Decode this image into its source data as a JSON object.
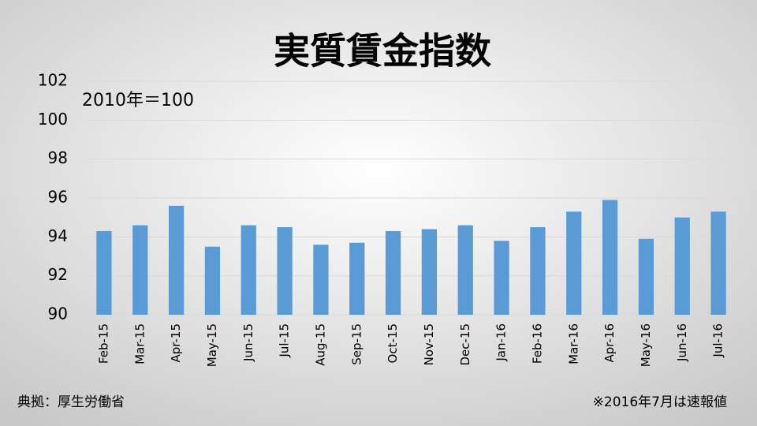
{
  "chart_data": {
    "type": "bar",
    "title": "実質賃金指数",
    "annotation": "2010年＝100",
    "source": "典拠：厚生労働省",
    "note": "※2016年7月は速報値",
    "categories": [
      "Feb-15",
      "Mar-15",
      "Apr-15",
      "May-15",
      "Jun-15",
      "Jul-15",
      "Aug-15",
      "Sep-15",
      "Oct-15",
      "Nov-15",
      "Dec-15",
      "Jan-16",
      "Feb-16",
      "Mar-16",
      "Apr-16",
      "May-16",
      "Jun-16",
      "Jul-16"
    ],
    "values": [
      94.3,
      94.6,
      95.6,
      93.5,
      94.6,
      94.5,
      93.6,
      93.7,
      94.3,
      94.4,
      94.6,
      93.8,
      94.5,
      95.3,
      95.9,
      93.9,
      95.0,
      95.3
    ],
    "color": "#5b9bd5",
    "ylim": [
      90,
      102
    ],
    "yticks": [
      90,
      92,
      94,
      96,
      98,
      100,
      102
    ],
    "grid": true
  }
}
